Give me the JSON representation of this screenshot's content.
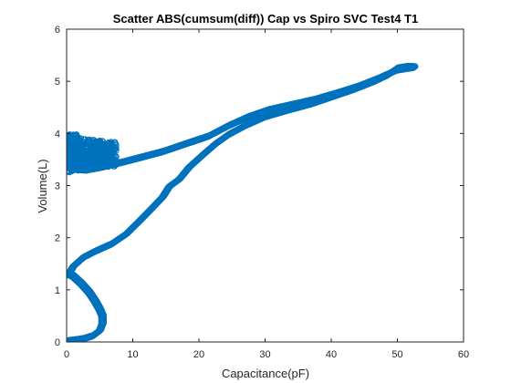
{
  "chart_data": {
    "type": "scatter",
    "title": "Scatter ABS(cumsum(diff)) Cap vs Spiro SVC Test4 T1",
    "xlabel": "Capacitance(pF)",
    "ylabel": "Volume(L)",
    "xlim": [
      0,
      60
    ],
    "ylim": [
      0,
      6
    ],
    "xticks": [
      0,
      10,
      20,
      30,
      40,
      50,
      60
    ],
    "yticks": [
      0,
      1,
      2,
      3,
      4,
      5,
      6
    ],
    "grid": false,
    "legend": "none",
    "marker": "open-circle",
    "color": "#0072BD",
    "path_inspiration": [
      [
        0.2,
        0.02
      ],
      [
        1.0,
        0.03
      ],
      [
        2.5,
        0.06
      ],
      [
        4.0,
        0.12
      ],
      [
        5.0,
        0.22
      ],
      [
        5.4,
        0.35
      ],
      [
        5.4,
        0.5
      ],
      [
        5.0,
        0.62
      ],
      [
        4.3,
        0.78
      ],
      [
        3.4,
        0.95
      ],
      [
        2.2,
        1.12
      ],
      [
        0.9,
        1.27
      ],
      [
        0.3,
        1.3
      ],
      [
        1.0,
        1.45
      ],
      [
        2.5,
        1.62
      ],
      [
        4.5,
        1.75
      ],
      [
        6.8,
        1.88
      ],
      [
        9.0,
        2.07
      ],
      [
        11.0,
        2.32
      ],
      [
        13.0,
        2.58
      ],
      [
        14.5,
        2.78
      ],
      [
        15.5,
        2.98
      ],
      [
        17.0,
        3.12
      ],
      [
        18.5,
        3.35
      ],
      [
        20.5,
        3.58
      ],
      [
        22.5,
        3.8
      ],
      [
        24.5,
        3.98
      ],
      [
        27.0,
        4.15
      ],
      [
        30.0,
        4.32
      ],
      [
        33.5,
        4.45
      ],
      [
        37.0,
        4.57
      ],
      [
        40.5,
        4.72
      ],
      [
        43.5,
        4.85
      ],
      [
        46.5,
        5.0
      ],
      [
        48.5,
        5.12
      ],
      [
        50.0,
        5.25
      ],
      [
        51.5,
        5.28
      ],
      [
        52.5,
        5.27
      ]
    ],
    "path_expiration": [
      [
        52.5,
        5.27
      ],
      [
        50.0,
        5.22
      ],
      [
        47.0,
        5.05
      ],
      [
        44.0,
        4.9
      ],
      [
        41.0,
        4.78
      ],
      [
        37.5,
        4.65
      ],
      [
        34.0,
        4.55
      ],
      [
        30.5,
        4.45
      ],
      [
        27.5,
        4.32
      ],
      [
        24.5,
        4.15
      ],
      [
        21.5,
        3.95
      ],
      [
        18.0,
        3.8
      ],
      [
        14.5,
        3.65
      ],
      [
        11.5,
        3.55
      ],
      [
        8.5,
        3.45
      ],
      [
        5.5,
        3.36
      ],
      [
        3.0,
        3.3
      ],
      [
        1.5,
        3.32
      ]
    ],
    "cluster": {
      "x_range": [
        0.2,
        7.5
      ],
      "y_range": [
        3.25,
        3.95
      ],
      "center": [
        2.0,
        3.52
      ]
    }
  }
}
